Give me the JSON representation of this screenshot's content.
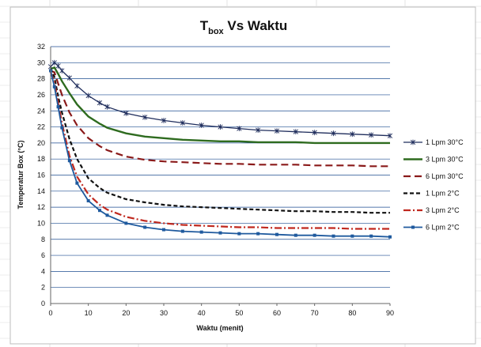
{
  "chart_data": {
    "type": "line",
    "title_main": "T",
    "title_sub": "box",
    "title_rest": " Vs Waktu",
    "xlabel": "Waktu (menit)",
    "ylabel": "Temperatur Box (°C)",
    "xlim": [
      0,
      90
    ],
    "ylim": [
      0,
      32
    ],
    "xticks": [
      "0",
      "10",
      "20",
      "30",
      "40",
      "50",
      "60",
      "70",
      "80",
      "90"
    ],
    "yticks": [
      "0",
      "2",
      "4",
      "6",
      "8",
      "10",
      "12",
      "14",
      "16",
      "18",
      "20",
      "22",
      "24",
      "26",
      "28",
      "30",
      "32"
    ],
    "grid": "horizontal",
    "legend_position": "right",
    "series": [
      {
        "name": "1 Lpm 30°C",
        "color": "#1f2d5c",
        "style": "star",
        "x": [
          0,
          1,
          2,
          3,
          5,
          7,
          10,
          13,
          15,
          20,
          25,
          30,
          35,
          40,
          45,
          50,
          55,
          60,
          65,
          70,
          75,
          80,
          85,
          90
        ],
        "y": [
          29.5,
          30.0,
          29.6,
          29.0,
          28.1,
          27.1,
          25.9,
          25.0,
          24.5,
          23.7,
          23.2,
          22.8,
          22.5,
          22.2,
          22.0,
          21.8,
          21.6,
          21.5,
          21.4,
          21.3,
          21.2,
          21.1,
          21.0,
          20.9
        ]
      },
      {
        "name": "3 Lpm 30°C",
        "color": "#2e6b1f",
        "style": "solid",
        "x": [
          0,
          1,
          2,
          3,
          5,
          7,
          10,
          13,
          15,
          20,
          25,
          30,
          35,
          40,
          45,
          50,
          55,
          60,
          65,
          70,
          75,
          80,
          85,
          90
        ],
        "y": [
          29.2,
          29.4,
          28.6,
          27.7,
          26.2,
          24.8,
          23.3,
          22.4,
          21.9,
          21.2,
          20.8,
          20.6,
          20.4,
          20.3,
          20.2,
          20.2,
          20.1,
          20.1,
          20.1,
          20.0,
          20.0,
          20.0,
          20.0,
          20.0
        ]
      },
      {
        "name": "6 Lpm 30°C",
        "color": "#8a1a1a",
        "style": "dashed",
        "x": [
          0,
          1,
          2,
          3,
          5,
          7,
          10,
          13,
          15,
          20,
          25,
          30,
          35,
          40,
          45,
          50,
          55,
          60,
          65,
          70,
          75,
          80,
          85,
          90
        ],
        "y": [
          29.0,
          28.8,
          27.4,
          26.0,
          23.8,
          22.2,
          20.6,
          19.6,
          19.1,
          18.3,
          17.9,
          17.7,
          17.6,
          17.5,
          17.4,
          17.4,
          17.3,
          17.3,
          17.3,
          17.2,
          17.2,
          17.2,
          17.1,
          17.1
        ]
      },
      {
        "name": "1 Lpm 2°C",
        "color": "#111111",
        "style": "short-dash",
        "x": [
          0,
          1,
          2,
          3,
          5,
          7,
          10,
          13,
          15,
          20,
          25,
          30,
          35,
          40,
          45,
          50,
          55,
          60,
          65,
          70,
          75,
          80,
          85,
          90
        ],
        "y": [
          29.3,
          28.2,
          25.8,
          23.8,
          20.5,
          18.0,
          15.6,
          14.4,
          13.8,
          13.0,
          12.6,
          12.3,
          12.1,
          12.0,
          11.9,
          11.8,
          11.7,
          11.6,
          11.5,
          11.5,
          11.4,
          11.4,
          11.3,
          11.3
        ]
      },
      {
        "name": "3 Lpm 2°C",
        "color": "#c0281e",
        "style": "dash-dot",
        "x": [
          0,
          1,
          2,
          3,
          5,
          7,
          10,
          13,
          15,
          20,
          25,
          30,
          35,
          40,
          45,
          50,
          55,
          60,
          65,
          70,
          75,
          80,
          85,
          90
        ],
        "y": [
          28.8,
          27.6,
          25.0,
          22.5,
          18.4,
          15.8,
          13.6,
          12.3,
          11.7,
          10.8,
          10.3,
          10.0,
          9.8,
          9.7,
          9.6,
          9.5,
          9.5,
          9.4,
          9.4,
          9.4,
          9.4,
          9.3,
          9.3,
          9.3
        ]
      },
      {
        "name": "6 Lpm 2°C",
        "color": "#1f5a9e",
        "style": "square",
        "x": [
          0,
          1,
          2,
          3,
          5,
          7,
          10,
          13,
          15,
          20,
          25,
          30,
          35,
          40,
          45,
          50,
          55,
          60,
          65,
          70,
          75,
          80,
          85,
          90
        ],
        "y": [
          29.0,
          27.0,
          24.5,
          21.9,
          17.8,
          15.0,
          12.8,
          11.6,
          11.0,
          10.0,
          9.5,
          9.2,
          9.0,
          8.9,
          8.8,
          8.7,
          8.7,
          8.6,
          8.5,
          8.5,
          8.4,
          8.4,
          8.4,
          8.3
        ]
      }
    ]
  }
}
